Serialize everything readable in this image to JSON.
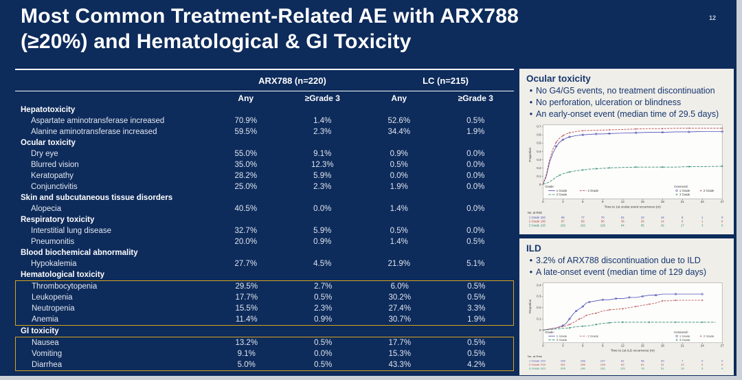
{
  "slide": {
    "page_number": "12",
    "title_line1": "Most Common Treatment-Related AE with ARX788",
    "title_line2": "(≥20%) and Hematological & GI Toxicity",
    "colors": {
      "background": "#0d2b5b",
      "highlight_box": "#d9a51c",
      "panel_background": "#efeee9",
      "panel_text": "#16356e",
      "series_grade1": "#5050b4",
      "series_grade2": "#b54242",
      "series_grade3": "#2f8a70"
    }
  },
  "table": {
    "group_headers": [
      "ARX788 (n=220)",
      "LC (n=215)"
    ],
    "sub_headers": [
      "Any",
      "≥Grade 3",
      "Any",
      "≥Grade 3"
    ],
    "sections": [
      {
        "header": "Hepatotoxicity",
        "boxed": false,
        "items": [
          {
            "label": "Aspartate aminotransferase increased",
            "values": [
              "70.9%",
              "1.4%",
              "52.6%",
              "0.5%"
            ]
          },
          {
            "label": "Alanine aminotransferase increased",
            "values": [
              "59.5%",
              "2.3%",
              "34.4%",
              "1.9%"
            ]
          }
        ]
      },
      {
        "header": "Ocular toxicity",
        "boxed": false,
        "items": [
          {
            "label": "Dry eye",
            "values": [
              "55.0%",
              "9.1%",
              "0.9%",
              "0.0%"
            ]
          },
          {
            "label": "Blurred vision",
            "values": [
              "35.0%",
              "12.3%",
              "0.5%",
              "0.0%"
            ]
          },
          {
            "label": "Keratopathy",
            "values": [
              "28.2%",
              "5.9%",
              "0.0%",
              "0.0%"
            ]
          },
          {
            "label": "Conjunctivitis",
            "values": [
              "25.0%",
              "2.3%",
              "1.9%",
              "0.0%"
            ]
          }
        ]
      },
      {
        "header": "Skin and subcutaneous tissue disorders",
        "boxed": false,
        "items": [
          {
            "label": "Alopecia",
            "values": [
              "40.5%",
              "0.0%",
              "1.4%",
              "0.0%"
            ]
          }
        ]
      },
      {
        "header": "Respiratory toxicity",
        "boxed": false,
        "items": [
          {
            "label": "Interstitial lung disease",
            "values": [
              "32.7%",
              "5.9%",
              "0.5%",
              "0.0%"
            ]
          },
          {
            "label": "Pneumonitis",
            "values": [
              "20.0%",
              "0.9%",
              "1.4%",
              "0.5%"
            ]
          }
        ]
      },
      {
        "header": "Blood biochemical abnormality",
        "boxed": false,
        "items": [
          {
            "label": "Hypokalemia",
            "values": [
              "27.7%",
              "4.5%",
              "21.9%",
              "5.1%"
            ]
          }
        ]
      },
      {
        "header": "Hematological toxicity",
        "boxed": true,
        "items": [
          {
            "label": "Thrombocytopenia",
            "values": [
              "29.5%",
              "2.7%",
              "6.0%",
              "0.5%"
            ]
          },
          {
            "label": "Leukopenia",
            "values": [
              "17.7%",
              "0.5%",
              "30.2%",
              "0.5%"
            ]
          },
          {
            "label": "Neutropenia",
            "values": [
              "15.5%",
              "2.3%",
              "27.4%",
              "3.3%"
            ]
          },
          {
            "label": "Anemia",
            "values": [
              "11.4%",
              "0.9%",
              "30.7%",
              "1.9%"
            ]
          }
        ]
      },
      {
        "header": "GI toxicity",
        "boxed": true,
        "items": [
          {
            "label": "Nausea",
            "values": [
              "13.2%",
              "0.5%",
              "17.7%",
              "0.5%"
            ]
          },
          {
            "label": "Vomiting",
            "values": [
              "9.1%",
              "0.0%",
              "15.3%",
              "0.5%"
            ]
          },
          {
            "label": "Diarrhea",
            "values": [
              "5.0%",
              "0.5%",
              "43.3%",
              "4.2%"
            ]
          }
        ]
      }
    ]
  },
  "panels": {
    "ocular": {
      "title": "Ocular toxicity",
      "bullets": [
        "No G4/G5 events, no treatment discontinuation",
        "No perforation, ulceration or blindness",
        "An early-onset event (median time of 29.5 days)"
      ]
    },
    "ild": {
      "title": "ILD",
      "bullets": [
        "3.2% of ARX788 discontinuation due to ILD",
        "A late-onset event (median time of 129 days)"
      ]
    }
  },
  "chart_data": [
    {
      "type": "line",
      "title": "Cumulative incidence of first ocular event by grade",
      "xlabel": "Time to 1st ocular event occurrence (m)",
      "ylabel": "Proportion",
      "xlim": [
        0,
        27
      ],
      "ylim": [
        0,
        0.72
      ],
      "xticks": [
        0,
        3,
        6,
        9,
        12,
        15,
        18,
        21,
        24,
        27
      ],
      "yticks": [
        0,
        0.1,
        0.2,
        0.3,
        0.4,
        0.5,
        0.6,
        0.7
      ],
      "grid": false,
      "legend_title": "Grade:",
      "censored_title": "Censored:",
      "series": [
        {
          "name": "1 Grade",
          "color": "#5050b4",
          "dash": "",
          "marker": "circle",
          "points": [
            [
              0,
              0
            ],
            [
              0.5,
              0.1
            ],
            [
              1,
              0.27
            ],
            [
              1.5,
              0.38
            ],
            [
              2,
              0.46
            ],
            [
              2.5,
              0.51
            ],
            [
              3,
              0.54
            ],
            [
              3.5,
              0.56
            ],
            [
              4,
              0.575
            ],
            [
              5,
              0.59
            ],
            [
              6,
              0.6
            ],
            [
              7,
              0.605
            ],
            [
              8,
              0.61
            ],
            [
              9,
              0.61
            ],
            [
              10,
              0.615
            ],
            [
              12,
              0.62
            ],
            [
              14,
              0.625
            ],
            [
              16,
              0.63
            ],
            [
              18,
              0.63
            ],
            [
              20,
              0.635
            ],
            [
              22,
              0.635
            ],
            [
              24,
              0.64
            ],
            [
              27,
              0.64
            ]
          ]
        },
        {
          "name": "2 Grade",
          "color": "#b54242",
          "dash": "3,1.6",
          "marker": "plus",
          "points": [
            [
              0,
              0
            ],
            [
              0.5,
              0.12
            ],
            [
              1,
              0.3
            ],
            [
              1.5,
              0.43
            ],
            [
              2,
              0.51
            ],
            [
              2.5,
              0.56
            ],
            [
              3,
              0.59
            ],
            [
              3.5,
              0.61
            ],
            [
              4,
              0.625
            ],
            [
              5,
              0.64
            ],
            [
              6,
              0.65
            ],
            [
              8,
              0.655
            ],
            [
              10,
              0.66
            ],
            [
              12,
              0.665
            ],
            [
              14,
              0.67
            ],
            [
              16,
              0.675
            ],
            [
              18,
              0.675
            ],
            [
              20,
              0.68
            ],
            [
              22,
              0.68
            ],
            [
              24,
              0.68
            ],
            [
              27,
              0.68
            ]
          ]
        },
        {
          "name": "3 Grade",
          "color": "#2f8a70",
          "dash": "4,1.6",
          "marker": "x",
          "points": [
            [
              0,
              0
            ],
            [
              1,
              0.03
            ],
            [
              1.5,
              0.06
            ],
            [
              2,
              0.09
            ],
            [
              2.5,
              0.11
            ],
            [
              3,
              0.13
            ],
            [
              4,
              0.15
            ],
            [
              5,
              0.165
            ],
            [
              6,
              0.175
            ],
            [
              7,
              0.185
            ],
            [
              8,
              0.19
            ],
            [
              9,
              0.195
            ],
            [
              10,
              0.2
            ],
            [
              12,
              0.205
            ],
            [
              14,
              0.21
            ],
            [
              16,
              0.21
            ],
            [
              18,
              0.21
            ],
            [
              20,
              0.21
            ],
            [
              22,
              0.215
            ],
            [
              24,
              0.215
            ],
            [
              27,
              0.22
            ]
          ]
        }
      ],
      "risk_table": {
        "label": "No. at Risk",
        "rows": [
          {
            "name": "1 Grade",
            "counts": [
              220,
              96,
              77,
              70,
              61,
              23,
              16,
              6,
              1,
              0
            ]
          },
          {
            "name": "2 Grade",
            "counts": [
              196,
              97,
              69,
              56,
              36,
              26,
              14,
              6,
              1,
              0
            ]
          },
          {
            "name": "3 Grade",
            "counts": [
              220,
              192,
              162,
              126,
              94,
              65,
              42,
              17,
              3,
              0
            ]
          }
        ]
      }
    },
    {
      "type": "line",
      "title": "Cumulative incidence of first ILD occurrence by grade",
      "xlabel": "Time to 1st ILD occurrence (m)",
      "ylabel": "Proportion",
      "xlim": [
        0,
        27
      ],
      "ylim": [
        0,
        0.42
      ],
      "xticks": [
        0,
        3,
        6,
        9,
        12,
        15,
        18,
        21,
        24,
        27
      ],
      "yticks": [
        0,
        0.1,
        0.2,
        0.3,
        0.4
      ],
      "grid": false,
      "legend_title": "Grade:",
      "censored_title": "Censored:",
      "series": [
        {
          "name": "1 Grade",
          "color": "#5050b4",
          "dash": "",
          "marker": "circle",
          "points": [
            [
              0,
              0
            ],
            [
              1,
              0.01
            ],
            [
              2,
              0.02
            ],
            [
              2.5,
              0.03
            ],
            [
              3,
              0.04
            ],
            [
              3.5,
              0.06
            ],
            [
              4,
              0.1
            ],
            [
              4.5,
              0.14
            ],
            [
              5,
              0.17
            ],
            [
              5.5,
              0.19
            ],
            [
              6,
              0.21
            ],
            [
              6.5,
              0.24
            ],
            [
              7,
              0.25
            ],
            [
              8,
              0.26
            ],
            [
              9,
              0.27
            ],
            [
              10,
              0.27
            ],
            [
              11,
              0.28
            ],
            [
              12,
              0.28
            ],
            [
              13,
              0.29
            ],
            [
              14,
              0.29
            ],
            [
              15,
              0.3
            ],
            [
              16,
              0.31
            ],
            [
              17,
              0.31
            ],
            [
              18,
              0.32
            ],
            [
              20,
              0.32
            ],
            [
              22,
              0.32
            ],
            [
              24,
              0.32
            ]
          ]
        },
        {
          "name": "2 Grade",
          "color": "#b54242",
          "dash": "3,1.6",
          "marker": "plus",
          "points": [
            [
              0,
              0
            ],
            [
              1,
              0.01
            ],
            [
              2,
              0.02
            ],
            [
              3,
              0.03
            ],
            [
              4,
              0.05
            ],
            [
              5,
              0.08
            ],
            [
              5.5,
              0.1
            ],
            [
              6,
              0.11
            ],
            [
              6.5,
              0.13
            ],
            [
              7,
              0.14
            ],
            [
              8,
              0.15
            ],
            [
              9,
              0.17
            ],
            [
              10,
              0.18
            ],
            [
              11,
              0.185
            ],
            [
              12,
              0.19
            ],
            [
              13,
              0.2
            ],
            [
              14,
              0.21
            ],
            [
              15,
              0.22
            ],
            [
              16,
              0.23
            ],
            [
              17,
              0.24
            ],
            [
              18,
              0.26
            ],
            [
              19,
              0.26
            ],
            [
              20,
              0.265
            ],
            [
              22,
              0.265
            ],
            [
              24,
              0.265
            ]
          ]
        },
        {
          "name": "3 Grade",
          "color": "#2f8a70",
          "dash": "4,1.6",
          "marker": "x",
          "points": [
            [
              0,
              0
            ],
            [
              1,
              0.005
            ],
            [
              2,
              0.01
            ],
            [
              3,
              0.015
            ],
            [
              4,
              0.02
            ],
            [
              5,
              0.03
            ],
            [
              6,
              0.035
            ],
            [
              7,
              0.04
            ],
            [
              8,
              0.05
            ],
            [
              9,
              0.06
            ],
            [
              10,
              0.065
            ],
            [
              11,
              0.07
            ],
            [
              12,
              0.07
            ],
            [
              14,
              0.07
            ],
            [
              16,
              0.07
            ],
            [
              18,
              0.07
            ],
            [
              20,
              0.07
            ],
            [
              22,
              0.07
            ],
            [
              24,
              0.07
            ],
            [
              26,
              0.07
            ]
          ]
        }
      ],
      "risk_table": {
        "label": "No. at Risk",
        "rows": [
          {
            "name": "1 Grade",
            "counts": [
              220,
              199,
              156,
              147,
              81,
              58,
              30,
              7,
              0,
              0
            ]
          },
          {
            "name": "2 Grade",
            "counts": [
              216,
              161,
              156,
              128,
              82,
              61,
              31,
              12,
              0,
              0
            ]
          },
          {
            "name": "3 Grade",
            "counts": [
              220,
              205,
              190,
              151,
              115,
              76,
              51,
              19,
              5,
              0
            ]
          }
        ]
      }
    }
  ]
}
